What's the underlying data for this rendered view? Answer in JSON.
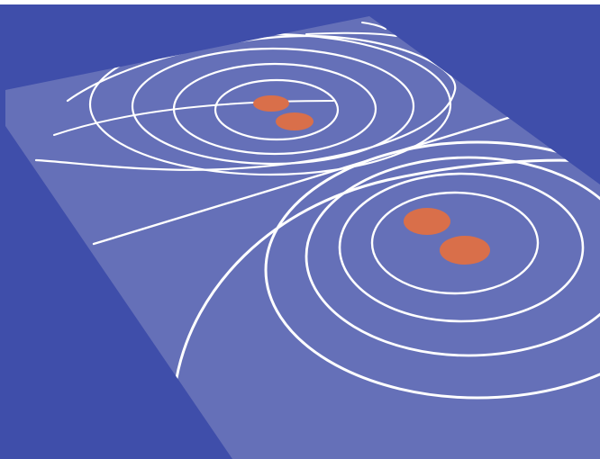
{
  "scene": {
    "subject": "field-lines-on-tilted-plane",
    "colors": {
      "background": "#3f4eaa",
      "plane": "#6570b8",
      "field_lines": "#ffffff",
      "charges": "#d96f4a"
    },
    "charge_pairs": 2,
    "charges_per_pair": 2
  }
}
